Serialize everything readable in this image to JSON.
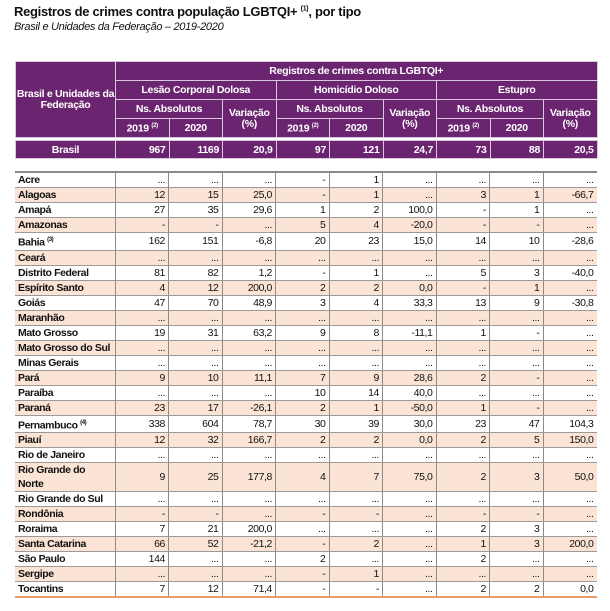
{
  "title": "Registros de crimes contra população LGBTQI+",
  "title_note": "(1)",
  "title_suffix": ", por tipo",
  "subtitle": "Brasil e Unidades da Federação – 2019-2020",
  "colors": {
    "header": "#6b2470",
    "row_alt": "#fbe4d5"
  },
  "header": {
    "region": "Brasil e Unidades da Federação",
    "group": "Registros de crimes contra LGBTQI+",
    "crimes": [
      "Lesão Corporal Dolosa",
      "Homicídio Doloso",
      "Estupro"
    ],
    "abs": "Ns. Absolutos",
    "var": "Variação (%)",
    "y2019": "2019",
    "y2019_note": "(2)",
    "y2020": "2020"
  },
  "brasil": {
    "name": "Brasil",
    "values": [
      "967",
      "1169",
      "20,9",
      "97",
      "121",
      "24,7",
      "73",
      "88",
      "20,5"
    ]
  },
  "rows": [
    {
      "name": "Acre",
      "values": [
        "...",
        "...",
        "...",
        "-",
        "1",
        "...",
        "...",
        "...",
        "..."
      ]
    },
    {
      "name": "Alagoas",
      "values": [
        "12",
        "15",
        "25,0",
        "-",
        "1",
        "...",
        "3",
        "1",
        "-66,7"
      ]
    },
    {
      "name": "Amapá",
      "values": [
        "27",
        "35",
        "29,6",
        "1",
        "2",
        "100,0",
        "-",
        "1",
        "..."
      ]
    },
    {
      "name": "Amazonas",
      "values": [
        "-",
        "-",
        "...",
        "5",
        "4",
        "-20,0",
        "-",
        "-",
        "..."
      ]
    },
    {
      "name": "Bahia",
      "note": "(3)",
      "values": [
        "162",
        "151",
        "-6,8",
        "20",
        "23",
        "15,0",
        "14",
        "10",
        "-28,6"
      ]
    },
    {
      "name": "Ceará",
      "values": [
        "...",
        "...",
        "...",
        "...",
        "...",
        "...",
        "...",
        "...",
        "..."
      ]
    },
    {
      "name": "Distrito Federal",
      "values": [
        "81",
        "82",
        "1,2",
        "-",
        "1",
        "...",
        "5",
        "3",
        "-40,0"
      ]
    },
    {
      "name": "Espírito Santo",
      "values": [
        "4",
        "12",
        "200,0",
        "2",
        "2",
        "0,0",
        "-",
        "1",
        "..."
      ]
    },
    {
      "name": "Goiás",
      "values": [
        "47",
        "70",
        "48,9",
        "3",
        "4",
        "33,3",
        "13",
        "9",
        "-30,8"
      ]
    },
    {
      "name": "Maranhão",
      "values": [
        "...",
        "...",
        "...",
        "...",
        "...",
        "...",
        "...",
        "...",
        "..."
      ]
    },
    {
      "name": "Mato Grosso",
      "values": [
        "19",
        "31",
        "63,2",
        "9",
        "8",
        "-11,1",
        "1",
        "-",
        "..."
      ]
    },
    {
      "name": "Mato Grosso do Sul",
      "values": [
        "...",
        "...",
        "...",
        "...",
        "...",
        "...",
        "...",
        "...",
        "..."
      ]
    },
    {
      "name": "Minas Gerais",
      "values": [
        "...",
        "...",
        "...",
        "...",
        "...",
        "...",
        "...",
        "...",
        "..."
      ]
    },
    {
      "name": "Pará",
      "values": [
        "9",
        "10",
        "11,1",
        "7",
        "9",
        "28,6",
        "2",
        "-",
        "..."
      ]
    },
    {
      "name": "Paraíba",
      "values": [
        "...",
        "...",
        "...",
        "10",
        "14",
        "40,0",
        "...",
        "...",
        "..."
      ]
    },
    {
      "name": "Paraná",
      "values": [
        "23",
        "17",
        "-26,1",
        "2",
        "1",
        "-50,0",
        "1",
        "-",
        "..."
      ]
    },
    {
      "name": "Pernambuco",
      "note": "(4)",
      "values": [
        "338",
        "604",
        "78,7",
        "30",
        "39",
        "30,0",
        "23",
        "47",
        "104,3"
      ]
    },
    {
      "name": "Piauí",
      "values": [
        "12",
        "32",
        "166,7",
        "2",
        "2",
        "0,0",
        "2",
        "5",
        "150,0"
      ]
    },
    {
      "name": "Rio de Janeiro",
      "values": [
        "...",
        "...",
        "...",
        "...",
        "...",
        "...",
        "...",
        "...",
        "..."
      ]
    },
    {
      "name": "Rio Grande do Norte",
      "values": [
        "9",
        "25",
        "177,8",
        "4",
        "7",
        "75,0",
        "2",
        "3",
        "50,0"
      ]
    },
    {
      "name": "Rio Grande do Sul",
      "values": [
        "...",
        "...",
        "...",
        "...",
        "...",
        "...",
        "...",
        "...",
        "..."
      ]
    },
    {
      "name": "Rondônia",
      "values": [
        "-",
        "-",
        "...",
        "-",
        "-",
        "...",
        "-",
        "-",
        "..."
      ]
    },
    {
      "name": "Roraima",
      "values": [
        "7",
        "21",
        "200,0",
        "...",
        "...",
        "...",
        "2",
        "3",
        "..."
      ]
    },
    {
      "name": "Santa Catarina",
      "values": [
        "66",
        "52",
        "-21,2",
        "-",
        "2",
        "...",
        "1",
        "3",
        "200,0"
      ]
    },
    {
      "name": "São Paulo",
      "values": [
        "144",
        "...",
        "...",
        "2",
        "...",
        "...",
        "2",
        "...",
        "..."
      ]
    },
    {
      "name": "Sergipe",
      "values": [
        "...",
        "...",
        "...",
        "-",
        "1",
        "...",
        "...",
        "...",
        "..."
      ]
    },
    {
      "name": "Tocantins",
      "values": [
        "7",
        "12",
        "71,4",
        "-",
        "-",
        "...",
        "2",
        "2",
        "0,0"
      ]
    }
  ]
}
